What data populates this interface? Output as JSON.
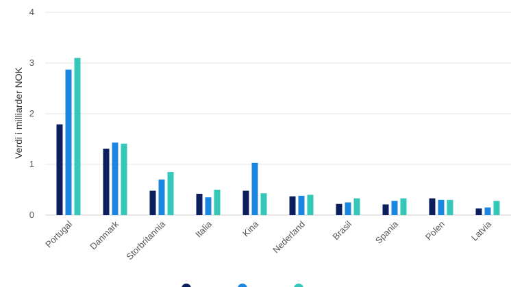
{
  "chart_data": {
    "type": "bar",
    "ylabel": "Verdi i milliarder NOK",
    "xlabel": "",
    "ylim": [
      0,
      4
    ],
    "yticks": [
      "0",
      "1",
      "2",
      "3",
      "4"
    ],
    "grid": "horizontal",
    "legend_position": "bottom",
    "categories": [
      "Portugal",
      "Danmark",
      "Storbritannia",
      "Italia",
      "Kina",
      "Nederland",
      "Brasil",
      "Spania",
      "Polen",
      "Latvia"
    ],
    "series": [
      {
        "color": "#0b1f5c",
        "values": [
          1.79,
          1.31,
          0.48,
          0.42,
          0.48,
          0.37,
          0.22,
          0.21,
          0.33,
          0.13
        ]
      },
      {
        "color": "#1a86e0",
        "values": [
          2.87,
          1.43,
          0.7,
          0.35,
          1.03,
          0.38,
          0.25,
          0.28,
          0.3,
          0.15
        ]
      },
      {
        "color": "#35c7b9",
        "values": [
          3.1,
          1.41,
          0.85,
          0.5,
          0.43,
          0.4,
          0.33,
          0.33,
          0.3,
          0.28
        ]
      }
    ]
  }
}
